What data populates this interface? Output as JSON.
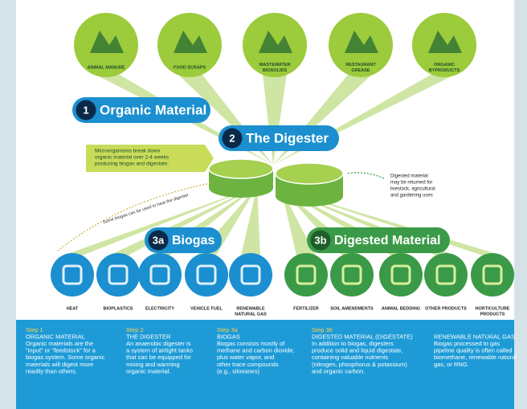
{
  "sources": [
    {
      "label": [
        "ANIMAL MANURE"
      ]
    },
    {
      "label": [
        "FOOD SCRAPS"
      ]
    },
    {
      "label": [
        "WASTEWATER",
        "BIOSOLIDS"
      ]
    },
    {
      "label": [
        "RESTAURANT",
        "GREASE"
      ]
    },
    {
      "label": [
        "ORGANIC",
        "BYPRODUCTS"
      ]
    }
  ],
  "step1": {
    "number": "1",
    "title": "Organic Material"
  },
  "step2": {
    "number": "2",
    "title": "The Digester"
  },
  "digester_note": [
    "Microorganisms break down",
    "organic material over 2-4 weeks",
    "producing biogas and digestate."
  ],
  "return_note": [
    "Digested material",
    "may be returned for",
    "livestock, agricultural",
    "and gardening uses"
  ],
  "heat_note": "Some biogas can be used to heat the digester",
  "step3a": {
    "number": "3a",
    "title": "Biogas"
  },
  "step3b": {
    "number": "3b",
    "title": "Digested Material"
  },
  "biogas_uses": [
    {
      "label": [
        "HEAT"
      ]
    },
    {
      "label": [
        "BIOPLASTICS"
      ]
    },
    {
      "label": [
        "ELECTRICITY"
      ]
    },
    {
      "label": [
        "VEHICLE FUEL"
      ]
    },
    {
      "label": [
        "RENEWABLE",
        "NATURAL GAS"
      ]
    }
  ],
  "digestate_uses": [
    {
      "label": [
        "FERTILIZER"
      ]
    },
    {
      "label": [
        "SOIL AMENDMENTS"
      ]
    },
    {
      "label": [
        "ANIMAL BEDDING"
      ]
    },
    {
      "label": [
        "OTHER PRODUCTS"
      ]
    },
    {
      "label": [
        "HORTICULTURE",
        "PRODUCTS"
      ]
    }
  ],
  "footer": [
    {
      "step": "Step 1",
      "title": "ORGANIC MATERIAL",
      "body": [
        "Organic materials are the",
        "\"input\" or \"feedstock\" for a",
        "biogas system. Some organic",
        "materials will digest more",
        "readily than others."
      ]
    },
    {
      "step": "Step 2",
      "title": "THE DIGESTER",
      "body": [
        "An anaerobic digester is",
        "a system of airtight tanks",
        "that can be equipped for",
        "mixing and warming",
        "organic material."
      ]
    },
    {
      "step": "Step 3a",
      "title": "BIOGAS",
      "body": [
        "Biogas consists mostly of",
        "methane and carbon dioxide,",
        "plus water vapor, and",
        "other trace compounds",
        "(e.g., siloxanes)"
      ]
    },
    {
      "step": "Step 3b",
      "title": "DIGESTED MATERIAL (DIGESTATE)",
      "body": [
        "In addition to biogas, digesters",
        "produce solid and liquid digestate,",
        "containing valuable nutrients",
        "(nitrogen, phosphorus & potassium)",
        "and organic carbon."
      ]
    },
    {
      "title": "RENEWABLE NATURAL GAS",
      "body": [
        "Biogas processed to gas",
        "pipeline quality is often called",
        "biomethane, renewable natural",
        "gas, or RNG."
      ]
    }
  ]
}
